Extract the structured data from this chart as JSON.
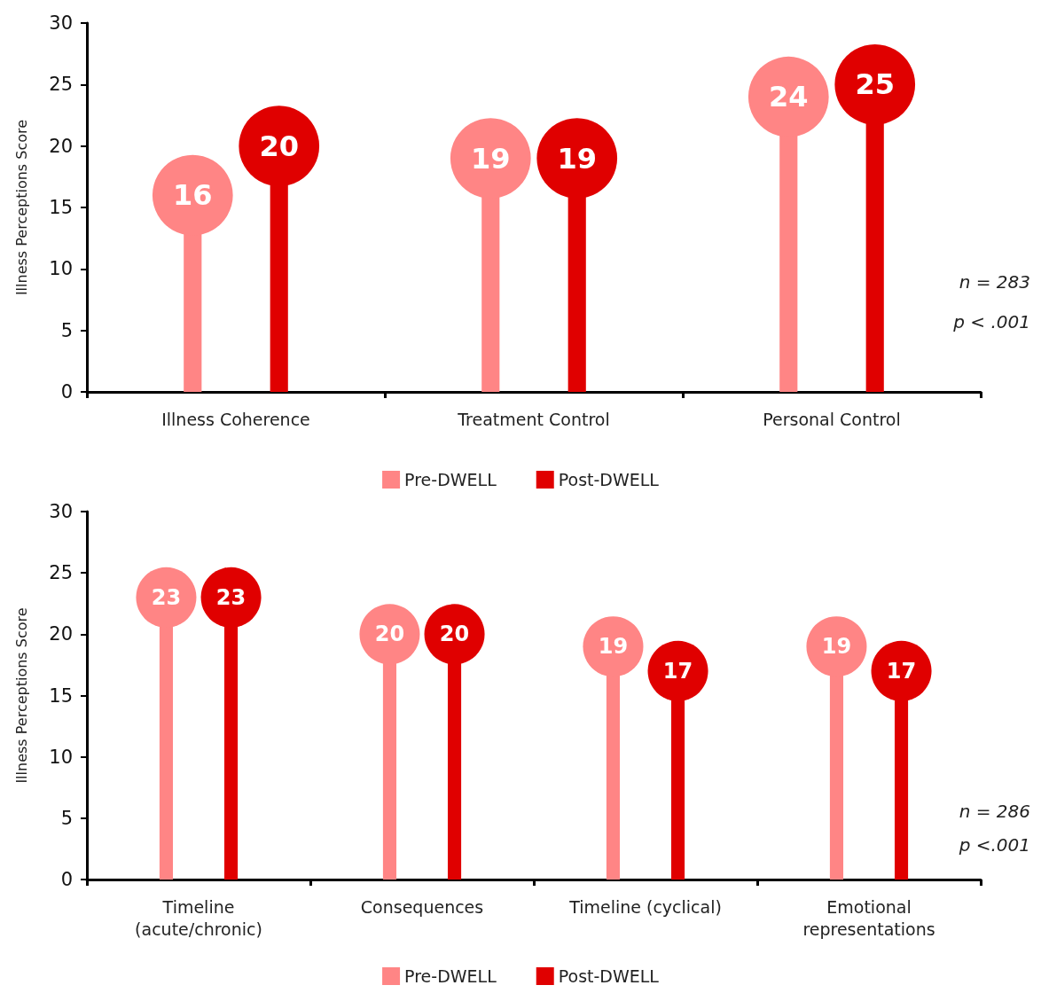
{
  "chart_data": [
    {
      "type": "lollipop",
      "ylabel": "Illness Perceptions Score",
      "categories": [
        "Illness Coherence",
        "Treatment Control",
        "Personal Control"
      ],
      "series": [
        {
          "name": "Pre-DWELL",
          "color": "#ff8585",
          "values": [
            16,
            19,
            24
          ]
        },
        {
          "name": "Post-DWELL",
          "color": "#e00000",
          "values": [
            20,
            19,
            25
          ]
        }
      ],
      "data_labels": true,
      "ylim": [
        0,
        30
      ],
      "yticks": [
        0,
        5,
        10,
        15,
        20,
        25,
        30
      ],
      "grid": false,
      "legend": "bottom",
      "marker": "circle",
      "annotations": [
        "n = 283",
        "p < .001"
      ]
    },
    {
      "type": "lollipop",
      "ylabel": "Illness Perceptions Score",
      "categories": [
        "Timeline\n(acute/chronic)",
        "Consequences",
        "Timeline (cyclical)",
        "Emotional\nrepresentations"
      ],
      "series": [
        {
          "name": "Pre-DWELL",
          "color": "#ff8585",
          "values": [
            23,
            20,
            19,
            19
          ]
        },
        {
          "name": "Post-DWELL",
          "color": "#e00000",
          "values": [
            23,
            20,
            17,
            17
          ]
        }
      ],
      "data_labels": true,
      "ylim": [
        0,
        30
      ],
      "yticks": [
        0,
        5,
        10,
        15,
        20,
        25,
        30
      ],
      "grid": false,
      "legend": "bottom",
      "marker": "circle",
      "annotations": [
        "n = 286",
        "p <.001"
      ]
    }
  ]
}
